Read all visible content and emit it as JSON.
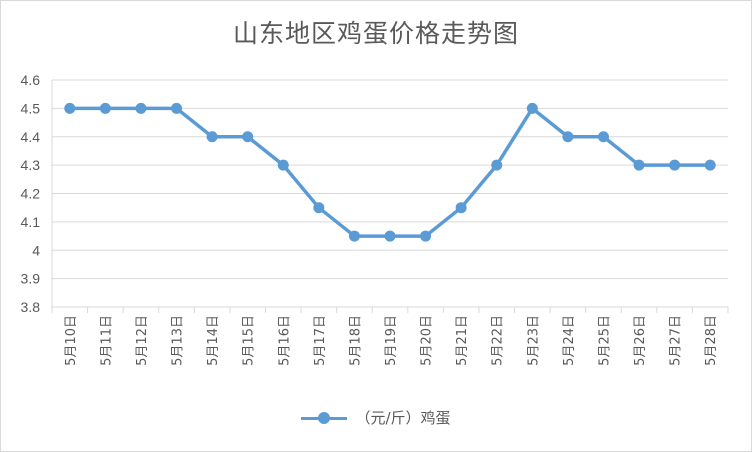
{
  "chart_data": {
    "type": "line",
    "title": "山东地区鸡蛋价格走势图",
    "xlabel": "",
    "ylabel": "",
    "categories": [
      "5月10日",
      "5月11日",
      "5月12日",
      "5月13日",
      "5月14日",
      "5月15日",
      "5月16日",
      "5月17日",
      "5月18日",
      "5月19日",
      "5月20日",
      "5月21日",
      "5月22日",
      "5月23日",
      "5月24日",
      "5月25日",
      "5月26日",
      "5月27日",
      "5月28日"
    ],
    "series": [
      {
        "name": "（元/斤）鸡蛋",
        "values": [
          4.5,
          4.5,
          4.5,
          4.5,
          4.4,
          4.4,
          4.3,
          4.15,
          4.05,
          4.05,
          4.05,
          4.15,
          4.3,
          4.5,
          4.4,
          4.4,
          4.3,
          4.3,
          4.3
        ]
      }
    ],
    "ylim": [
      3.8,
      4.6
    ],
    "yticks": [
      "3.8",
      "3.9",
      "4",
      "4.1",
      "4.2",
      "4.3",
      "4.4",
      "4.5",
      "4.6"
    ],
    "grid": true,
    "legend_position": "bottom",
    "line_color": "#5b9bd5"
  }
}
